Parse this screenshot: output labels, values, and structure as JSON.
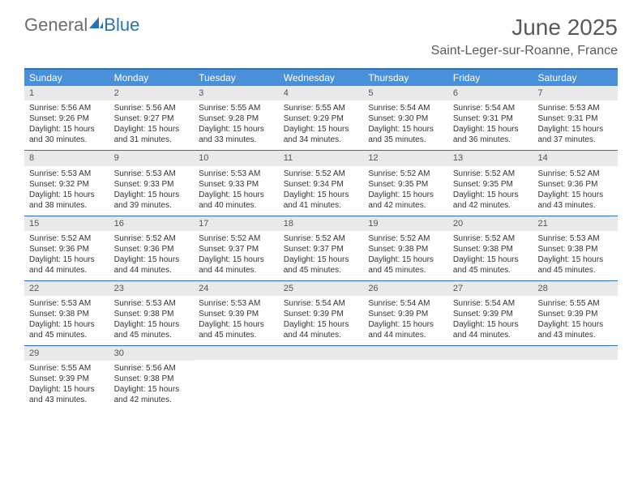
{
  "brand": {
    "text1": "General",
    "text2": "Blue"
  },
  "title": "June 2025",
  "location": "Saint-Leger-sur-Roanne, France",
  "colors": {
    "header_bar": "#4a90d9",
    "rule": "#2a71b8",
    "daynum_bg": "#e9e9e9",
    "text": "#333333",
    "title_text": "#5a5a5a",
    "logo_gray": "#6c6c6c",
    "logo_blue": "#2a71b8"
  },
  "weekdays": [
    "Sunday",
    "Monday",
    "Tuesday",
    "Wednesday",
    "Thursday",
    "Friday",
    "Saturday"
  ],
  "weeks": [
    [
      {
        "n": "1",
        "sunrise": "Sunrise: 5:56 AM",
        "sunset": "Sunset: 9:26 PM",
        "daylight": "Daylight: 15 hours and 30 minutes."
      },
      {
        "n": "2",
        "sunrise": "Sunrise: 5:56 AM",
        "sunset": "Sunset: 9:27 PM",
        "daylight": "Daylight: 15 hours and 31 minutes."
      },
      {
        "n": "3",
        "sunrise": "Sunrise: 5:55 AM",
        "sunset": "Sunset: 9:28 PM",
        "daylight": "Daylight: 15 hours and 33 minutes."
      },
      {
        "n": "4",
        "sunrise": "Sunrise: 5:55 AM",
        "sunset": "Sunset: 9:29 PM",
        "daylight": "Daylight: 15 hours and 34 minutes."
      },
      {
        "n": "5",
        "sunrise": "Sunrise: 5:54 AM",
        "sunset": "Sunset: 9:30 PM",
        "daylight": "Daylight: 15 hours and 35 minutes."
      },
      {
        "n": "6",
        "sunrise": "Sunrise: 5:54 AM",
        "sunset": "Sunset: 9:31 PM",
        "daylight": "Daylight: 15 hours and 36 minutes."
      },
      {
        "n": "7",
        "sunrise": "Sunrise: 5:53 AM",
        "sunset": "Sunset: 9:31 PM",
        "daylight": "Daylight: 15 hours and 37 minutes."
      }
    ],
    [
      {
        "n": "8",
        "sunrise": "Sunrise: 5:53 AM",
        "sunset": "Sunset: 9:32 PM",
        "daylight": "Daylight: 15 hours and 38 minutes."
      },
      {
        "n": "9",
        "sunrise": "Sunrise: 5:53 AM",
        "sunset": "Sunset: 9:33 PM",
        "daylight": "Daylight: 15 hours and 39 minutes."
      },
      {
        "n": "10",
        "sunrise": "Sunrise: 5:53 AM",
        "sunset": "Sunset: 9:33 PM",
        "daylight": "Daylight: 15 hours and 40 minutes."
      },
      {
        "n": "11",
        "sunrise": "Sunrise: 5:52 AM",
        "sunset": "Sunset: 9:34 PM",
        "daylight": "Daylight: 15 hours and 41 minutes."
      },
      {
        "n": "12",
        "sunrise": "Sunrise: 5:52 AM",
        "sunset": "Sunset: 9:35 PM",
        "daylight": "Daylight: 15 hours and 42 minutes."
      },
      {
        "n": "13",
        "sunrise": "Sunrise: 5:52 AM",
        "sunset": "Sunset: 9:35 PM",
        "daylight": "Daylight: 15 hours and 42 minutes."
      },
      {
        "n": "14",
        "sunrise": "Sunrise: 5:52 AM",
        "sunset": "Sunset: 9:36 PM",
        "daylight": "Daylight: 15 hours and 43 minutes."
      }
    ],
    [
      {
        "n": "15",
        "sunrise": "Sunrise: 5:52 AM",
        "sunset": "Sunset: 9:36 PM",
        "daylight": "Daylight: 15 hours and 44 minutes."
      },
      {
        "n": "16",
        "sunrise": "Sunrise: 5:52 AM",
        "sunset": "Sunset: 9:36 PM",
        "daylight": "Daylight: 15 hours and 44 minutes."
      },
      {
        "n": "17",
        "sunrise": "Sunrise: 5:52 AM",
        "sunset": "Sunset: 9:37 PM",
        "daylight": "Daylight: 15 hours and 44 minutes."
      },
      {
        "n": "18",
        "sunrise": "Sunrise: 5:52 AM",
        "sunset": "Sunset: 9:37 PM",
        "daylight": "Daylight: 15 hours and 45 minutes."
      },
      {
        "n": "19",
        "sunrise": "Sunrise: 5:52 AM",
        "sunset": "Sunset: 9:38 PM",
        "daylight": "Daylight: 15 hours and 45 minutes."
      },
      {
        "n": "20",
        "sunrise": "Sunrise: 5:52 AM",
        "sunset": "Sunset: 9:38 PM",
        "daylight": "Daylight: 15 hours and 45 minutes."
      },
      {
        "n": "21",
        "sunrise": "Sunrise: 5:53 AM",
        "sunset": "Sunset: 9:38 PM",
        "daylight": "Daylight: 15 hours and 45 minutes."
      }
    ],
    [
      {
        "n": "22",
        "sunrise": "Sunrise: 5:53 AM",
        "sunset": "Sunset: 9:38 PM",
        "daylight": "Daylight: 15 hours and 45 minutes."
      },
      {
        "n": "23",
        "sunrise": "Sunrise: 5:53 AM",
        "sunset": "Sunset: 9:38 PM",
        "daylight": "Daylight: 15 hours and 45 minutes."
      },
      {
        "n": "24",
        "sunrise": "Sunrise: 5:53 AM",
        "sunset": "Sunset: 9:39 PM",
        "daylight": "Daylight: 15 hours and 45 minutes."
      },
      {
        "n": "25",
        "sunrise": "Sunrise: 5:54 AM",
        "sunset": "Sunset: 9:39 PM",
        "daylight": "Daylight: 15 hours and 44 minutes."
      },
      {
        "n": "26",
        "sunrise": "Sunrise: 5:54 AM",
        "sunset": "Sunset: 9:39 PM",
        "daylight": "Daylight: 15 hours and 44 minutes."
      },
      {
        "n": "27",
        "sunrise": "Sunrise: 5:54 AM",
        "sunset": "Sunset: 9:39 PM",
        "daylight": "Daylight: 15 hours and 44 minutes."
      },
      {
        "n": "28",
        "sunrise": "Sunrise: 5:55 AM",
        "sunset": "Sunset: 9:39 PM",
        "daylight": "Daylight: 15 hours and 43 minutes."
      }
    ],
    [
      {
        "n": "29",
        "sunrise": "Sunrise: 5:55 AM",
        "sunset": "Sunset: 9:39 PM",
        "daylight": "Daylight: 15 hours and 43 minutes."
      },
      {
        "n": "30",
        "sunrise": "Sunrise: 5:56 AM",
        "sunset": "Sunset: 9:38 PM",
        "daylight": "Daylight: 15 hours and 42 minutes."
      },
      {
        "empty": true
      },
      {
        "empty": true
      },
      {
        "empty": true
      },
      {
        "empty": true
      },
      {
        "empty": true
      }
    ]
  ]
}
